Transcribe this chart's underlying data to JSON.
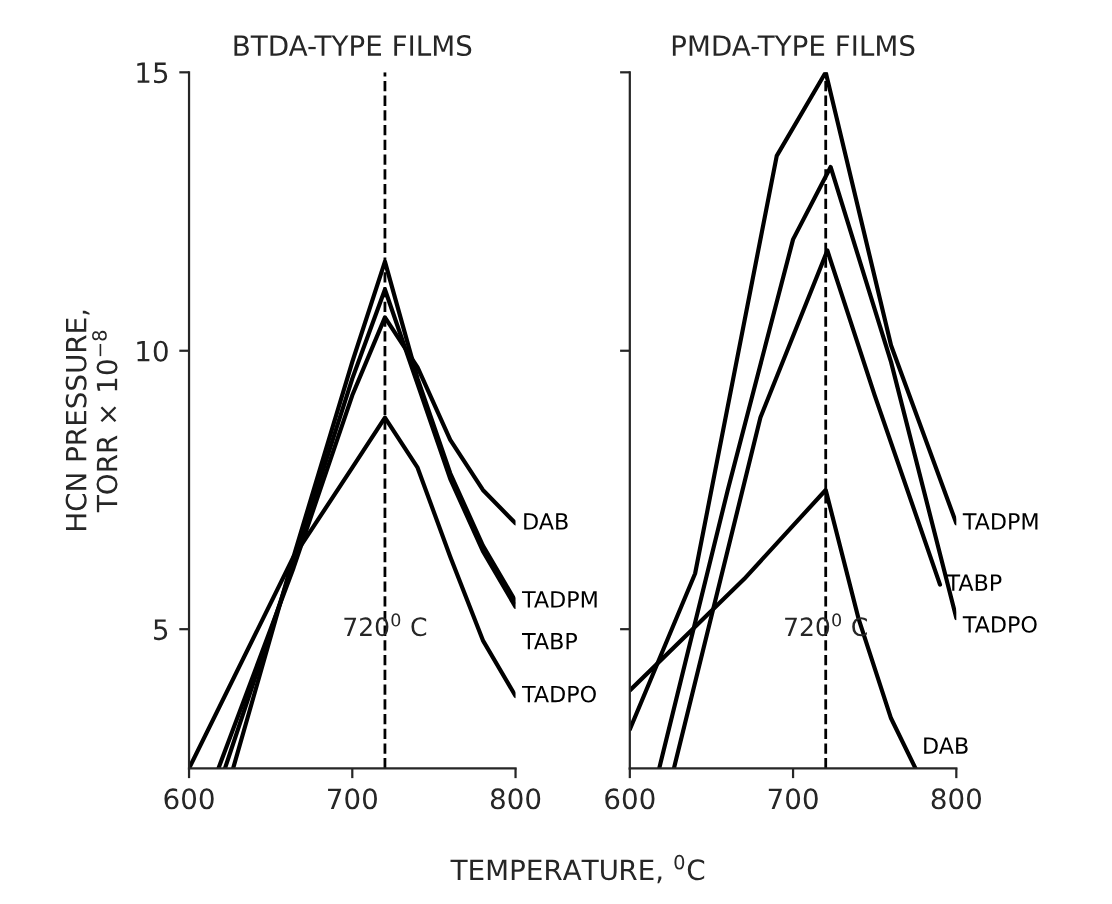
{
  "chart_data": [
    {
      "type": "line",
      "title": "BTDA-TYPE FILMS",
      "xlabel": "TEMPERATURE, $^{0}$C",
      "ylabel": "HCN PRESSURE,\nTORR × 10$^{−8}$",
      "xlim": [
        600,
        800
      ],
      "ylim": [
        2.5,
        15
      ],
      "xticks": [
        600,
        700,
        800
      ],
      "yticks": [
        5,
        10,
        15
      ],
      "legend": false,
      "grid": false,
      "ref_lines": [
        {
          "axis": "x",
          "value": 720,
          "label": "720$^{0}$ C",
          "line_style": "dashed",
          "color": "#000000"
        }
      ],
      "series": [
        {
          "name": "TADPM",
          "color": "#000000",
          "x": [
            627,
            664,
            700,
            720,
            740,
            760,
            780,
            800
          ],
          "values": [
            2.5,
            6.3,
            9.8,
            11.6,
            9.5,
            7.8,
            6.5,
            5.5
          ]
        },
        {
          "name": "TABP",
          "color": "#000000",
          "x": [
            622,
            664,
            700,
            720,
            740,
            760,
            780,
            800
          ],
          "values": [
            2.5,
            6.2,
            9.5,
            11.1,
            9.4,
            7.7,
            6.4,
            5.4
          ]
        },
        {
          "name": "DAB",
          "color": "#000000",
          "x": [
            618,
            664,
            700,
            720,
            740,
            760,
            780,
            800
          ],
          "values": [
            2.5,
            6.1,
            9.2,
            10.6,
            9.7,
            8.4,
            7.5,
            6.9
          ]
        },
        {
          "name": "TADPO",
          "color": "#000000",
          "x": [
            600,
            664,
            700,
            720,
            740,
            760,
            780,
            800
          ],
          "values": [
            2.5,
            6.3,
            7.9,
            8.8,
            7.9,
            6.3,
            4.8,
            3.8
          ]
        }
      ]
    },
    {
      "type": "line",
      "title": "PMDA-TYPE FILMS",
      "xlim": [
        600,
        800
      ],
      "ylim": [
        2.5,
        15
      ],
      "xticks": [
        600,
        700,
        800
      ],
      "yticks": [
        5,
        10,
        15
      ],
      "tick_labels": "x",
      "legend": false,
      "grid": false,
      "ref_lines": [
        {
          "axis": "x",
          "value": 720,
          "label": "720$^{0}$ C",
          "line_style": "dashed",
          "color": "#000000"
        }
      ],
      "series": [
        {
          "name": "TADPM",
          "color": "#000000",
          "x": [
            600,
            640,
            690,
            720,
            760,
            800
          ],
          "values": [
            3.2,
            6.0,
            13.5,
            15.0,
            10.1,
            6.9
          ]
        },
        {
          "name": "TADPO",
          "color": "#000000",
          "x": [
            618,
            660,
            700,
            723,
            760,
            800
          ],
          "values": [
            2.5,
            7.5,
            12.0,
            13.3,
            9.8,
            5.2
          ]
        },
        {
          "name": "TABP",
          "color": "#000000",
          "x": [
            627,
            680,
            721,
            750,
            790
          ],
          "values": [
            2.5,
            8.8,
            11.8,
            9.2,
            5.8
          ]
        },
        {
          "name": "DAB",
          "color": "#000000",
          "x": [
            600,
            670,
            720,
            740,
            760,
            775
          ],
          "values": [
            3.9,
            5.9,
            7.5,
            5.2,
            3.4,
            2.5
          ]
        }
      ]
    }
  ]
}
